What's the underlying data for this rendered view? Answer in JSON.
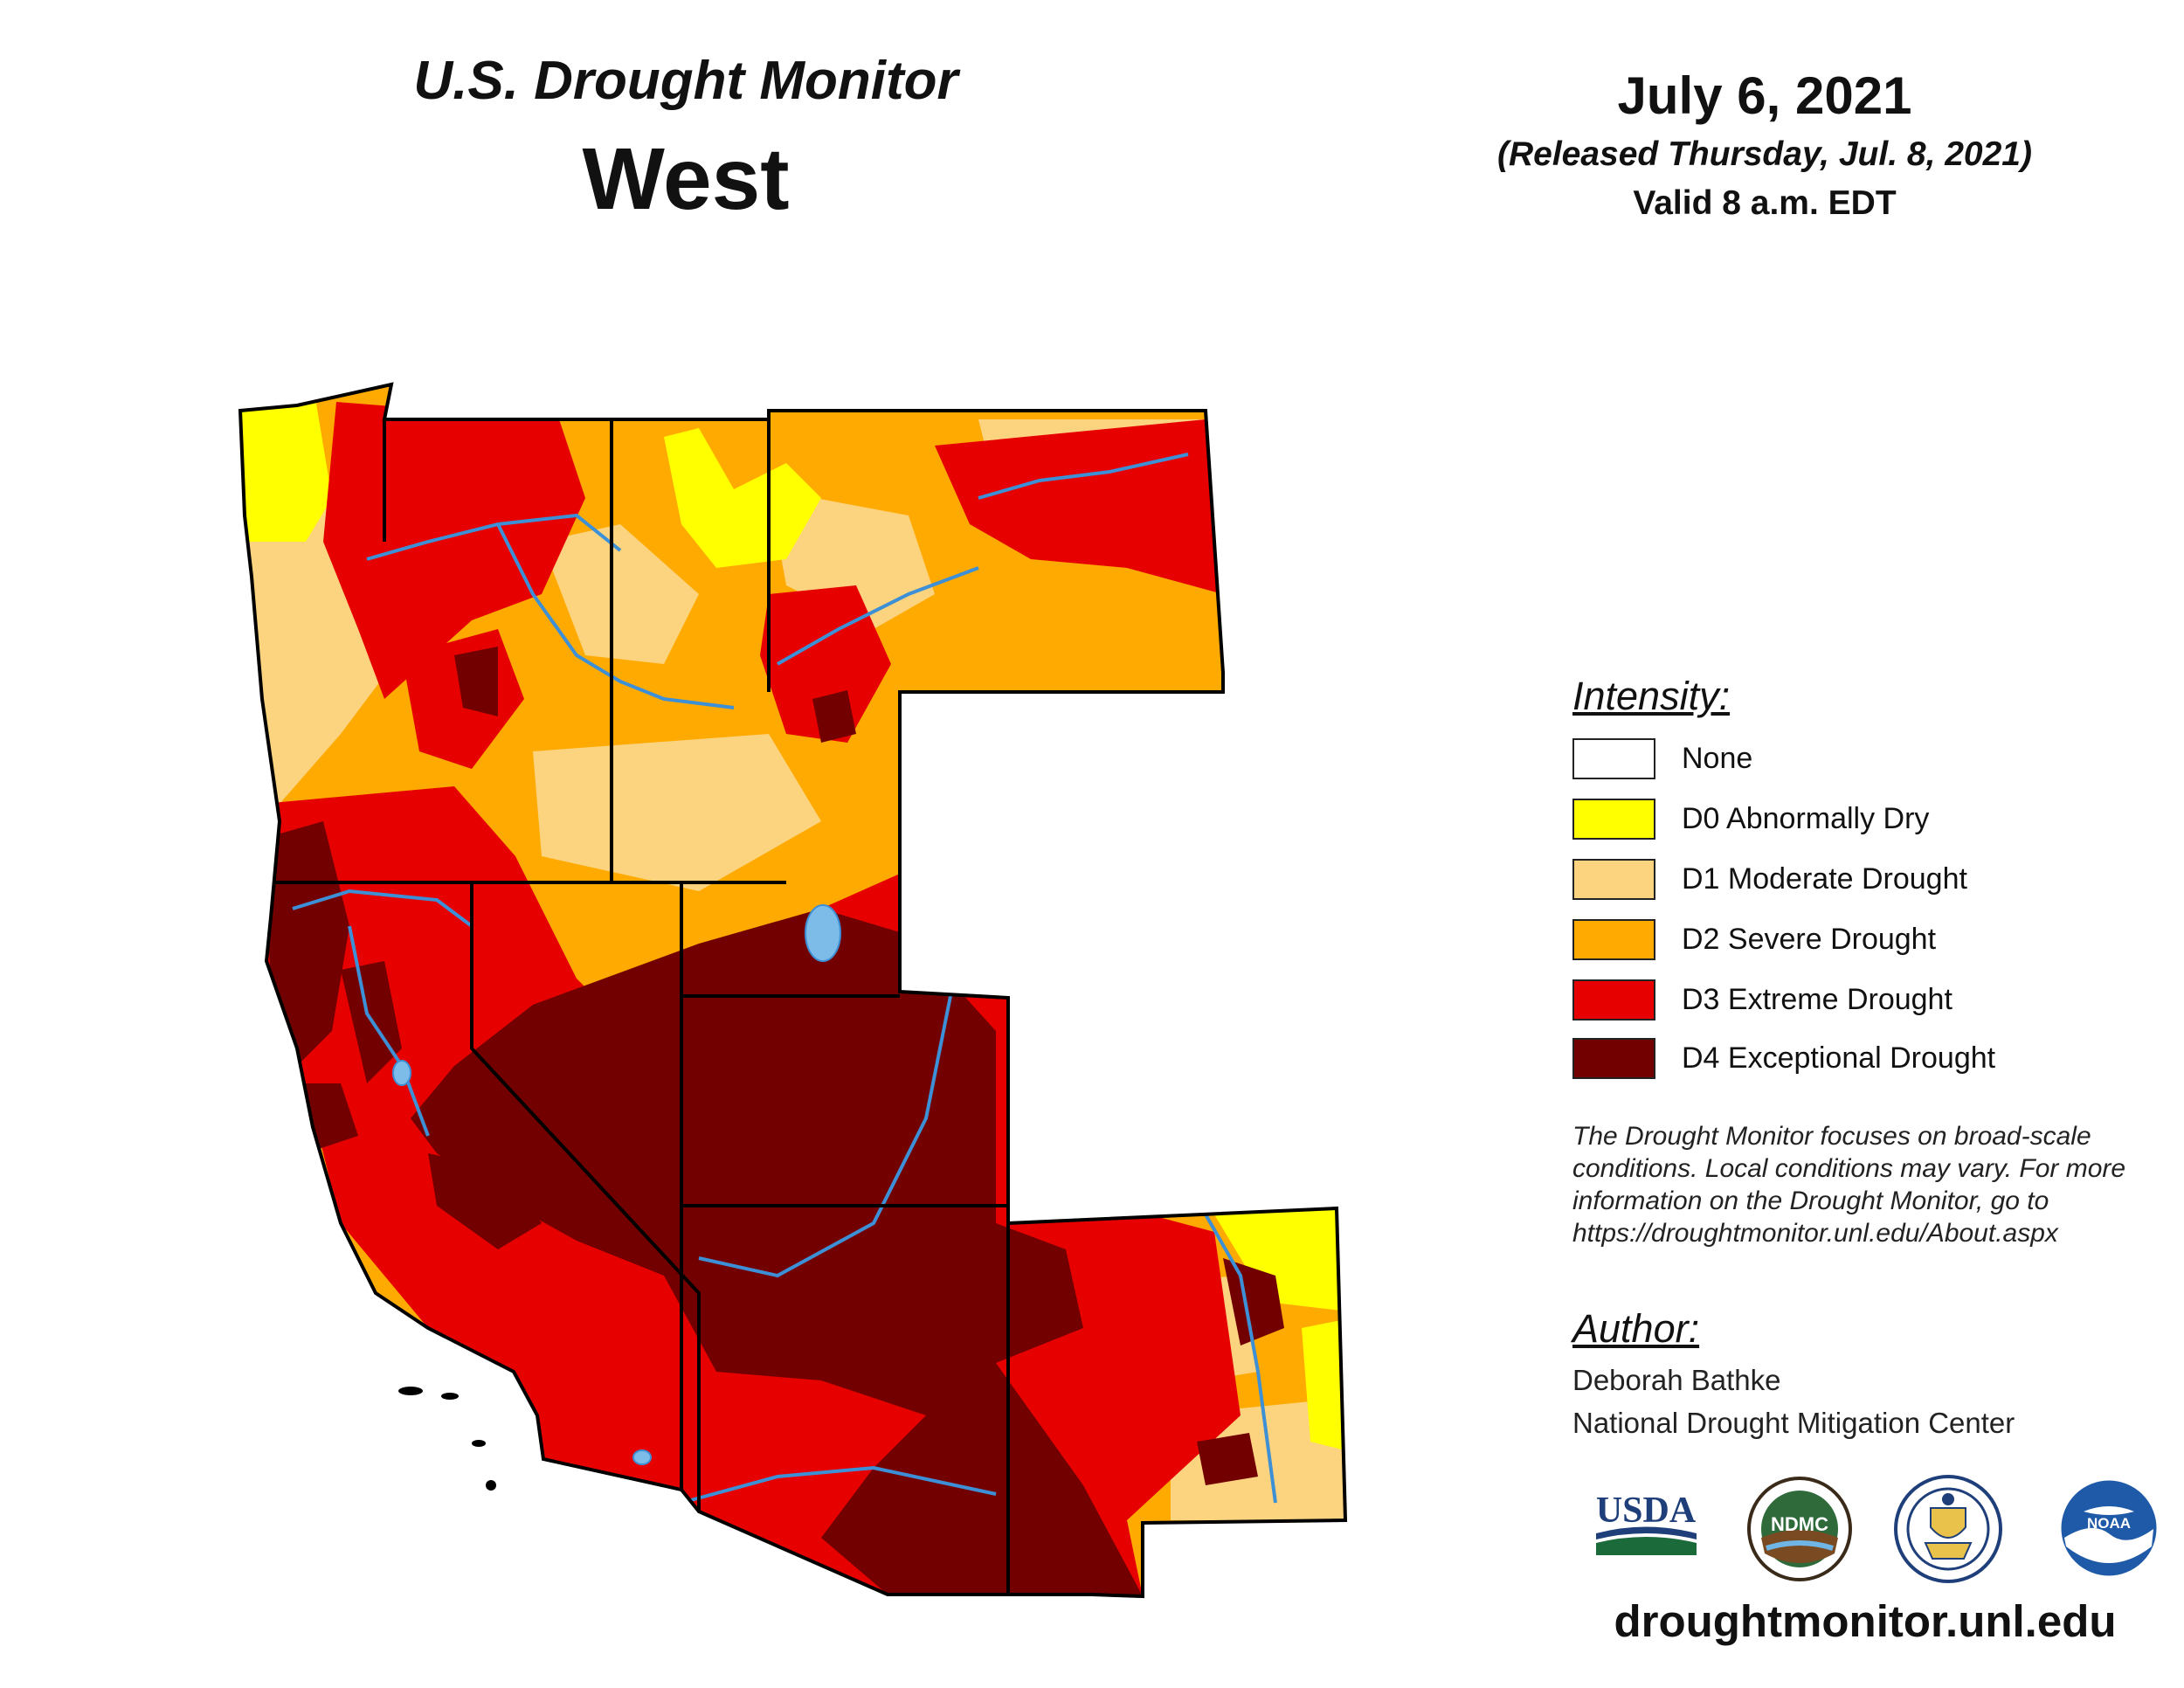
{
  "header": {
    "product_title": "U.S. Drought Monitor",
    "region_title": "West",
    "map_date": "July 6, 2021",
    "release_note": "(Released Thursday, Jul. 8, 2021)",
    "valid_time": "Valid 8 a.m. EDT"
  },
  "legend": {
    "title": "Intensity:",
    "items": [
      {
        "label": "None",
        "color": "#ffffff"
      },
      {
        "label": "D0 Abnormally Dry",
        "color": "#ffff00"
      },
      {
        "label": "D1 Moderate Drought",
        "color": "#fcd37f"
      },
      {
        "label": "D2 Severe Drought",
        "color": "#ffaa00"
      },
      {
        "label": "D3 Extreme Drought",
        "color": "#e60000"
      },
      {
        "label": "D4 Exceptional Drought",
        "color": "#730000"
      }
    ]
  },
  "disclaimer": "The Drought Monitor focuses on broad-scale conditions. Local conditions may vary. For more information on the Drought Monitor, go to https://droughtmonitor.unl.edu/About.aspx",
  "author": {
    "title": "Author:",
    "name": "Deborah Bathke",
    "organization": "National Drought Mitigation Center"
  },
  "logos": {
    "usda": "USDA",
    "ndmc": "NDMC",
    "doc": "seal-icon",
    "noaa": "NOAA"
  },
  "website": "droughtmonitor.unl.edu",
  "colors": {
    "water": "#7dbbe8",
    "river": "#3d8fd6",
    "boundary": "#000000"
  }
}
